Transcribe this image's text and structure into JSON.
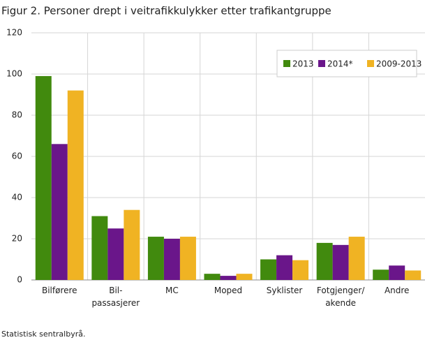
{
  "chart_data": {
    "type": "bar",
    "title": "Figur 2. Personer drept i veitrafikkulykker etter trafikantgruppe",
    "categories": [
      "Bilførere",
      "Bil-\npassasjerer",
      "MC",
      "Moped",
      "Syklister",
      "Fotgjenger/\nakende",
      "Andre"
    ],
    "series": [
      {
        "name": "2013",
        "color": "#418a0e",
        "values": [
          99,
          31,
          21,
          3,
          10,
          18,
          5
        ]
      },
      {
        "name": "2014*",
        "color": "#6a168a",
        "values": [
          66,
          25,
          20,
          2,
          12,
          17,
          7
        ]
      },
      {
        "name": "2009-2013",
        "color": "#f0b323",
        "values": [
          92,
          34,
          21,
          3,
          9.6,
          21,
          4.6
        ]
      }
    ],
    "ylim": [
      0,
      120
    ],
    "yticks": [
      0,
      20,
      40,
      60,
      80,
      100,
      120
    ],
    "grid": true,
    "legend": "top-right",
    "source": "Statistisk sentralbyrå."
  }
}
